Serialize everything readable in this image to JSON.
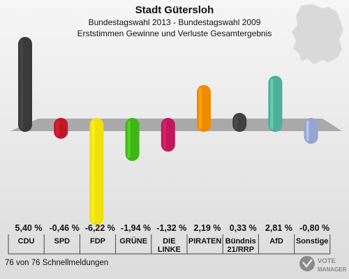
{
  "title": "Stadt Gütersloh",
  "subtitle_1": "Bundestagswahl 2013 - Bundestagswahl 2009",
  "subtitle_2": "Erststimmen Gewinne und Verluste Gesamtergebnis",
  "footer": "76 von 76 Schnellmeldungen",
  "logo_text": "VOTE MANAGER",
  "chart_data": {
    "type": "bar",
    "title": "Stadt Gütersloh",
    "categories": [
      "CDU",
      "SPD",
      "FDP",
      "GRÜNE",
      "DIE LINKE",
      "PIRATEN",
      "Bündnis 21/RRP",
      "AfD",
      "Sonstige"
    ],
    "category_lines": [
      [
        "CDU"
      ],
      [
        "SPD"
      ],
      [
        "FDP"
      ],
      [
        "GRÜNE"
      ],
      [
        "DIE",
        "LINKE"
      ],
      [
        "PIRATEN"
      ],
      [
        "Bündnis",
        "21/RRP"
      ],
      [
        "AfD"
      ],
      [
        "Sonstige"
      ]
    ],
    "values": [
      5.4,
      -0.46,
      -6.22,
      -1.94,
      -1.32,
      2.19,
      0.33,
      2.81,
      -0.8
    ],
    "value_labels": [
      "5,40 %",
      "-0,46 %",
      "-6,22 %",
      "-1,94 %",
      "-1,32 %",
      "2,19 %",
      "0,33 %",
      "2,81 %",
      "-0,80 %"
    ],
    "colors": [
      "#3a3a3a",
      "#c0172a",
      "#f0e010",
      "#3fb517",
      "#c0185a",
      "#f08a00",
      "#404040",
      "#4fae98",
      "#96a4cf"
    ],
    "ylim": [
      -6.5,
      5.6
    ],
    "grid": false,
    "legend": "none"
  }
}
